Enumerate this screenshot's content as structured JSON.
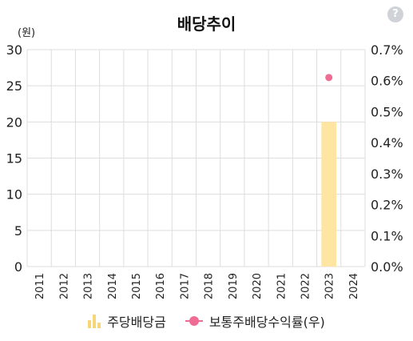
{
  "header": {
    "title": "배당추이",
    "help_label": "?",
    "unit_label": "(원)"
  },
  "colors": {
    "bar": "#fee6a2",
    "dot": "#ef6c95",
    "grid": "#dddddd"
  },
  "icons": {
    "help": "question-circle-icon"
  },
  "legend": {
    "dividend_label": "주당배당금",
    "yield_label": "보통주배당수익률(우)"
  },
  "chart_data": {
    "type": "bar",
    "title": "배당추이",
    "categories": [
      "2011",
      "2012",
      "2013",
      "2014",
      "2015",
      "2016",
      "2017",
      "2018",
      "2019",
      "2020",
      "2021",
      "2022",
      "2023",
      "2024"
    ],
    "series": [
      {
        "name": "주당배당금",
        "type": "bar",
        "axis": "left",
        "values": [
          null,
          null,
          null,
          null,
          null,
          null,
          null,
          null,
          null,
          null,
          null,
          null,
          20,
          null
        ]
      },
      {
        "name": "보통주배당수익률(우)",
        "type": "scatter",
        "axis": "right",
        "values": [
          null,
          null,
          null,
          null,
          null,
          null,
          null,
          null,
          null,
          null,
          null,
          null,
          0.61,
          null
        ]
      }
    ],
    "y_left": {
      "min": 0,
      "max": 30,
      "ticks": [
        "0",
        "5",
        "10",
        "15",
        "20",
        "25",
        "30"
      ]
    },
    "y_right": {
      "min": 0,
      "max": 0.7,
      "ticks": [
        "0.0%",
        "0.1%",
        "0.2%",
        "0.3%",
        "0.4%",
        "0.5%",
        "0.6%",
        "0.7%"
      ]
    },
    "grid": true,
    "legend_position": "bottom"
  }
}
